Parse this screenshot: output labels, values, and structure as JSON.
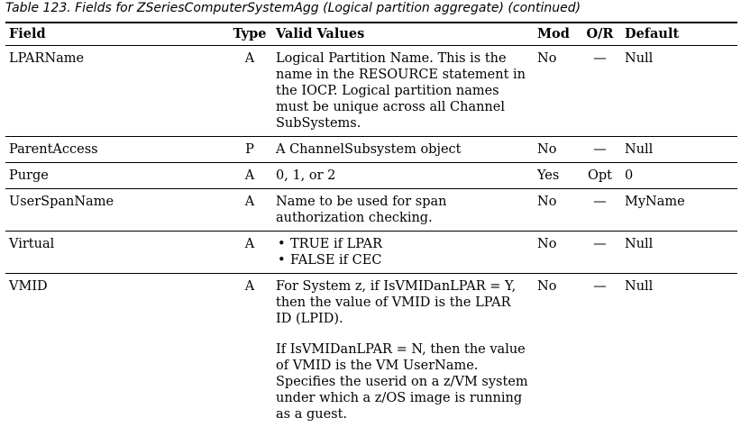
{
  "caption": "Table 123. Fields for ZSeriesComputerSystemAgg (Logical partition aggregate)  (continued)",
  "headers": {
    "field": "Field",
    "type": "Type",
    "values": "Valid Values",
    "mod": "Mod",
    "or": "O/R",
    "default": "Default"
  },
  "rows": [
    {
      "field": "LPARName",
      "type": "A",
      "values": [
        "Logical Partition Name. This is the name in the RESOURCE statement in the IOCP. Logical partition names must be unique across all Channel SubSystems."
      ],
      "mod": "No",
      "or": "—",
      "default": "Null"
    },
    {
      "field": "ParentAccess",
      "type": "P",
      "values": [
        "A ChannelSubsystem object"
      ],
      "mod": "No",
      "or": "—",
      "default": "Null"
    },
    {
      "field": "Purge",
      "type": "A",
      "values": [
        "0, 1, or 2"
      ],
      "mod": "Yes",
      "or": "Opt",
      "default": "0"
    },
    {
      "field": "UserSpanName",
      "type": "A",
      "values": [
        "Name to be used for span authorization checking."
      ],
      "mod": "No",
      "or": "—",
      "default": "MyName"
    },
    {
      "field": "Virtual",
      "type": "A",
      "bullets": [
        "TRUE if LPAR",
        "FALSE if CEC"
      ],
      "mod": "No",
      "or": "—",
      "default": "Null"
    },
    {
      "field": "VMID",
      "type": "A",
      "values": [
        "For System z, if IsVMIDanLPAR = Y, then the value of VMID is the LPAR ID (LPID).",
        "If IsVMIDanLPAR = N, then the value of VMID is the VM UserName. Specifies the userid on a z/VM system under which a z/OS image is running as a guest."
      ],
      "mod": "No",
      "or": "—",
      "default": "Null"
    }
  ]
}
